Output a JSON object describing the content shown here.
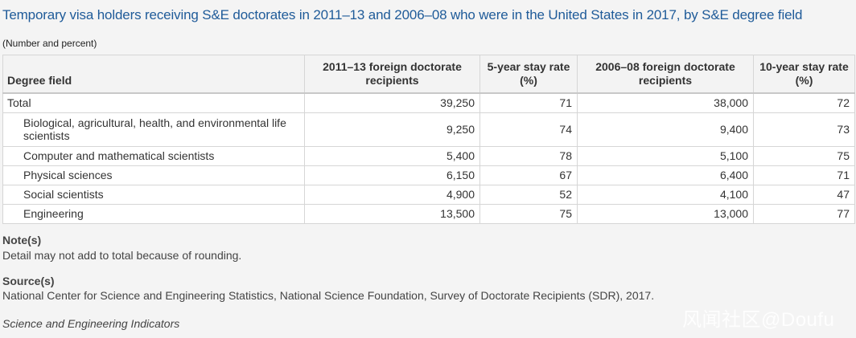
{
  "title": "Temporary visa holders receiving S&E doctorates in 2011–13 and 2006–08 who were in the United States in 2017, by S&E degree field",
  "subtitle": "(Number and percent)",
  "table": {
    "headers": [
      "Degree field",
      "2011–13 foreign doctorate recipients",
      "5-year stay rate (%)",
      "2006–08 foreign doctorate recipients",
      "10-year stay rate (%)"
    ],
    "rows": [
      [
        "Total",
        "39,250",
        "71",
        "38,000",
        "72"
      ],
      [
        "Biological, agricultural, health, and environmental life scientists",
        "9,250",
        "74",
        "9,400",
        "73"
      ],
      [
        "Computer and mathematical scientists",
        "5,400",
        "78",
        "5,100",
        "75"
      ],
      [
        "Physical sciences",
        "6,150",
        "67",
        "6,400",
        "71"
      ],
      [
        "Social scientists",
        "4,900",
        "52",
        "4,100",
        "47"
      ],
      [
        "Engineering",
        "13,500",
        "75",
        "13,000",
        "77"
      ]
    ]
  },
  "notes": {
    "heading": "Note(s)",
    "text": "Detail may not add to total because of rounding."
  },
  "source": {
    "heading": "Source(s)",
    "text": "National Center for Science and Engineering Statistics, National Science Foundation, Survey of Doctorate Recipients (SDR), 2017."
  },
  "footer": "Science and Engineering Indicators",
  "watermark": "风闻社区@Doufu"
}
